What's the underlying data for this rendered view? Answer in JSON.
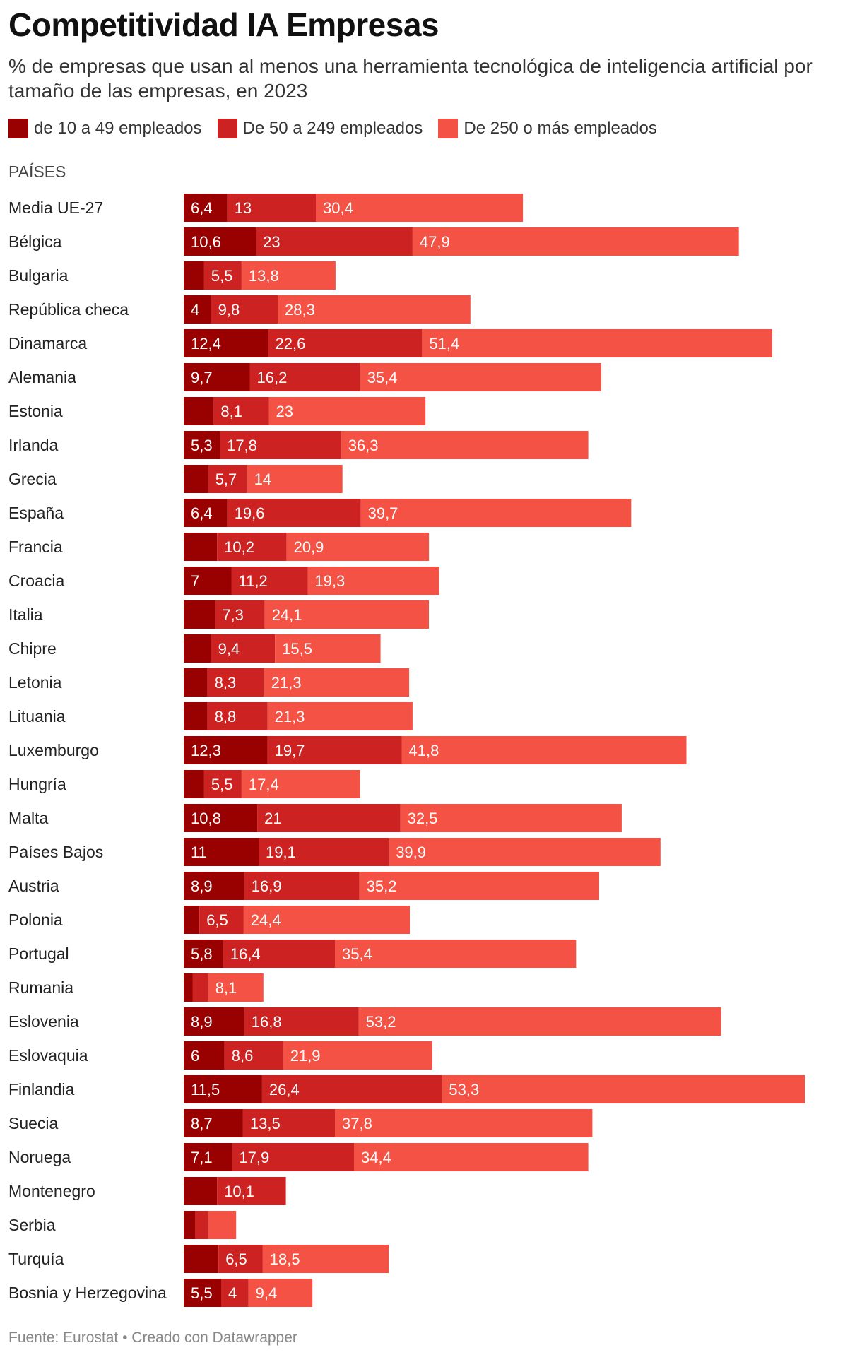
{
  "title": "Competitividad IA Empresas",
  "subtitle": "% de empresas que usan al menos una herramienta tecnológica de inteligencia artificial por tamaño de las empresas, en 2023",
  "column_header": "PAÍSES",
  "footer": "Fuente: Eurostat • Creado con Datawrapper",
  "colors": {
    "series1": "#990000",
    "series2": "#cc2222",
    "series3": "#f55246",
    "label": "#ffffff"
  },
  "chart_data": {
    "type": "bar",
    "orientation": "horizontal",
    "stacked": true,
    "legend_position": "top",
    "grid": false,
    "categories": [
      "Media UE-27",
      "Bélgica",
      "Bulgaria",
      "República checa",
      "Dinamarca",
      "Alemania",
      "Estonia",
      "Irlanda",
      "Grecia",
      "España",
      "Francia",
      "Croacia",
      "Italia",
      "Chipre",
      "Letonia",
      "Lituania",
      "Luxemburgo",
      "Hungría",
      "Malta",
      "Países Bajos",
      "Austria",
      "Polonia",
      "Portugal",
      "Rumania",
      "Eslovenia",
      "Eslovaquia",
      "Finlandia",
      "Suecia",
      "Noruega",
      "Montenegro",
      "Serbia",
      "Turquía",
      "Bosnia y Herzegovina"
    ],
    "series": [
      {
        "name": "de 10 a 49 empleados",
        "values": [
          6.4,
          10.6,
          3,
          4,
          12.4,
          9.7,
          4.4,
          5.3,
          3.6,
          6.4,
          4.9,
          7,
          4.6,
          4,
          3.5,
          3.5,
          12.3,
          3,
          10.8,
          11,
          8.9,
          2.3,
          5.8,
          1.3,
          8.9,
          6,
          11.5,
          8.7,
          7.1,
          4.9,
          1.7,
          5.1,
          5.5
        ],
        "labels": [
          "6,4",
          "10,6",
          "",
          "4",
          "12,4",
          "9,7",
          "",
          "5,3",
          "",
          "6,4",
          "",
          "7",
          "",
          "",
          "",
          "",
          "12,3",
          "",
          "10,8",
          "11",
          "8,9",
          "",
          "5,8",
          "",
          "8,9",
          "6",
          "11,5",
          "8,7",
          "7,1",
          "",
          "",
          "",
          "5,5"
        ]
      },
      {
        "name": "De 50 a 249 empleados",
        "values": [
          13,
          23,
          5.5,
          9.8,
          22.6,
          16.2,
          8.1,
          17.8,
          5.7,
          19.6,
          10.2,
          11.2,
          7.3,
          9.4,
          8.3,
          8.8,
          19.7,
          5.5,
          21,
          19.1,
          16.9,
          6.5,
          16.4,
          2.3,
          16.8,
          8.6,
          26.4,
          13.5,
          17.9,
          10.1,
          1.9,
          6.5,
          4
        ],
        "labels": [
          "13",
          "23",
          "5,5",
          "9,8",
          "22,6",
          "16,2",
          "8,1",
          "17,8",
          "5,7",
          "19,6",
          "10,2",
          "11,2",
          "7,3",
          "9,4",
          "8,3",
          "8,8",
          "19,7",
          "5,5",
          "21",
          "19,1",
          "16,9",
          "6,5",
          "16,4",
          "",
          "16,8",
          "8,6",
          "26,4",
          "13,5",
          "17,9",
          "10,1",
          "",
          "6,5",
          "4"
        ]
      },
      {
        "name": "De 250 o más empleados",
        "values": [
          30.4,
          47.9,
          13.8,
          28.3,
          51.4,
          35.4,
          23,
          36.3,
          14,
          39.7,
          20.9,
          19.3,
          24.1,
          15.5,
          21.3,
          21.3,
          41.8,
          17.4,
          32.5,
          39.9,
          35.2,
          24.4,
          35.4,
          8.1,
          53.2,
          21.9,
          53.3,
          37.8,
          34.4,
          0,
          4.1,
          18.5,
          9.4
        ],
        "labels": [
          "30,4",
          "47,9",
          "13,8",
          "28,3",
          "51,4",
          "35,4",
          "23",
          "36,3",
          "14",
          "39,7",
          "20,9",
          "19,3",
          "24,1",
          "15,5",
          "21,3",
          "21,3",
          "41,8",
          "17,4",
          "32,5",
          "39,9",
          "35,2",
          "24,4",
          "35,4",
          "8,1",
          "53,2",
          "21,9",
          "53,3",
          "37,8",
          "34,4",
          "",
          "",
          "18,5",
          "9,4"
        ]
      }
    ]
  }
}
